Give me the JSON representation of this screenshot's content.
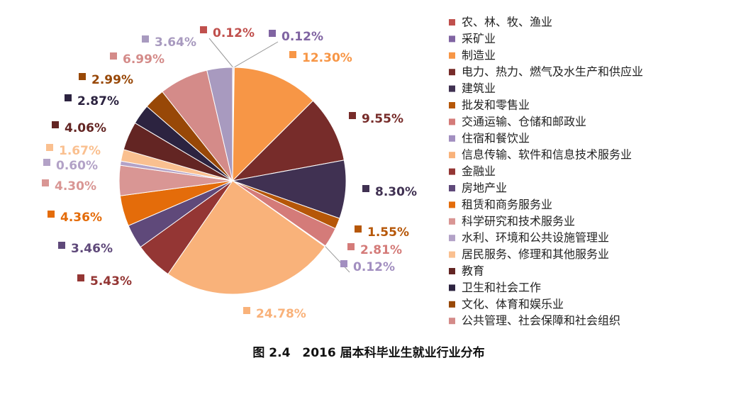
{
  "chart_data": {
    "type": "pie",
    "title": "图 2.4　2016 届本科毕业生就业行业分布",
    "categories": [
      "农、林、牧、渔业",
      "采矿业",
      "制造业",
      "电力、热力、燃气及水生产和供应业",
      "建筑业",
      "批发和零售业",
      "交通运输、仓储和邮政业",
      "住宿和餐饮业",
      "信息传输、软件和信息技术服务业",
      "金融业",
      "房地产业",
      "租赁和商务服务业",
      "科学研究和技术服务业",
      "水利、环境和公共设施管理业",
      "居民服务、修理和其他服务业",
      "教育",
      "卫生和社会工作",
      "文化、体育和娱乐业",
      "公共管理、社会保障和社会组织",
      null
    ],
    "values": [
      0.12,
      0.12,
      12.3,
      9.55,
      8.3,
      1.55,
      2.81,
      0.12,
      24.78,
      5.43,
      3.46,
      4.36,
      4.3,
      0.6,
      1.67,
      4.06,
      2.87,
      2.99,
      6.99,
      3.64
    ],
    "value_labels": [
      "0.12%",
      "0.12%",
      "12.30%",
      "9.55%",
      "8.30%",
      "1.55%",
      "2.81%",
      "0.12%",
      "24.78%",
      "5.43%",
      "3.46%",
      "4.36%",
      "4.30%",
      "0.60%",
      "1.67%",
      "4.06%",
      "2.87%",
      "2.99%",
      "6.99%",
      "3.64%"
    ],
    "colors": [
      "#c0504d",
      "#8064a2",
      "#f79646",
      "#772c2a",
      "#403152",
      "#b65708",
      "#d47b79",
      "#a28fc0",
      "#f9b27a",
      "#943634",
      "#5f497a",
      "#e46c0a",
      "#d99694",
      "#b3a2c7",
      "#fac090",
      "#632523",
      "#2c2340",
      "#984807",
      "#d48b89",
      "#a89abf"
    ],
    "legend": "right"
  }
}
